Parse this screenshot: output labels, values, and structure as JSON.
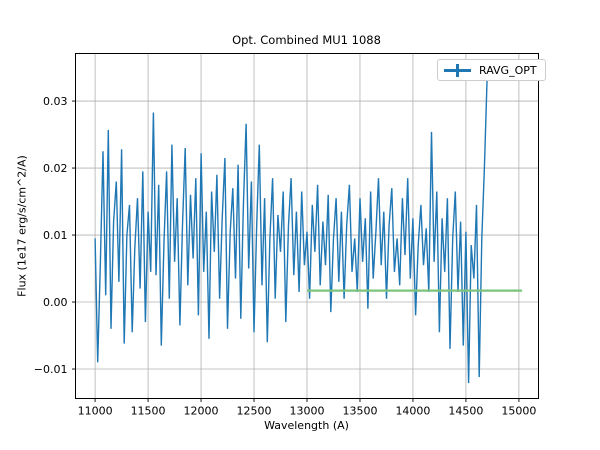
{
  "figure": {
    "title": "Opt. Combined MU1 1088",
    "xlabel": "Wavelength (A)",
    "ylabel": "Flux (1e17 erg/s/cm^2/A)",
    "legend_label": "RAVG_OPT"
  },
  "colors": {
    "spectrum_line": "#1f77b4",
    "average_line": "#7cc47c",
    "grid": "#b0b0b0",
    "spine": "#000000",
    "text": "#000000",
    "legend_border": "#cccccc",
    "background": "#ffffff"
  },
  "chart_data": {
    "type": "line",
    "title": "Opt. Combined MU1 1088",
    "xlabel": "Wavelength (A)",
    "ylabel": "Flux (1e17 erg/s/cm^2/A)",
    "grid": true,
    "legend_position": "upper right",
    "xlim": [
      10815,
      15185
    ],
    "ylim": [
      -0.0144,
      0.0371
    ],
    "x_ticks": [
      11000,
      11500,
      12000,
      12500,
      13000,
      13500,
      14000,
      14500,
      15000
    ],
    "x_tick_labels": [
      "11000",
      "11500",
      "12000",
      "12500",
      "13000",
      "13500",
      "14000",
      "14500",
      "15000"
    ],
    "y_ticks": [
      -0.01,
      0,
      0.01,
      0.02,
      0.03
    ],
    "y_tick_labels": [
      "−0.01",
      "0.00",
      "0.01",
      "0.02",
      "0.03"
    ],
    "series": [
      {
        "name": "RAVG_OPT",
        "color": "#1f77b4",
        "in_legend": true,
        "x_start": 11000,
        "x_step": 25,
        "values": [
          0.0095,
          -0.009,
          0.006,
          0.0225,
          0.001,
          0.0257,
          -0.004,
          0.012,
          0.018,
          0.003,
          0.0228,
          -0.0062,
          0.01,
          0.0145,
          -0.0045,
          0.008,
          0.0155,
          0.002,
          0.0195,
          -0.003,
          0.0135,
          0.0045,
          0.0283,
          0.004,
          0.0175,
          -0.0065,
          0.009,
          0.0195,
          0.0005,
          0.0235,
          0.006,
          0.0155,
          -0.0035,
          0.0115,
          0.023,
          0.0025,
          0.016,
          0.0065,
          0.0185,
          -0.002,
          0.0222,
          0.0045,
          0.0135,
          -0.0055,
          0.0165,
          0.0075,
          0.019,
          0.0005,
          0.0125,
          0.0215,
          -0.004,
          0.0105,
          0.017,
          0.0035,
          0.0205,
          -0.0025,
          0.0145,
          0.0266,
          0.005,
          0.018,
          -0.0045,
          0.0115,
          0.0235,
          0.0025,
          0.0155,
          -0.006,
          0.0095,
          0.0185,
          0.0005,
          0.013,
          0.0075,
          0.0165,
          -0.003,
          0.0115,
          0.0185,
          0.004,
          0.0135,
          0.0015,
          0.0165,
          0.0055,
          0.0105,
          0.0005,
          0.0145,
          0.0075,
          0.0175,
          0.0025,
          0.012,
          0.0055,
          0.016,
          -0.0015,
          0.0095,
          0.0155,
          0.003,
          0.0135,
          0.0005,
          0.0115,
          0.0175,
          0.0045,
          0.0095,
          0.0015,
          0.0155,
          0.006,
          0.0125,
          -0.001,
          0.0165,
          0.0035,
          0.0105,
          0.0185,
          0.0055,
          0.0135,
          0.0005,
          0.0115,
          0.017,
          0.0045,
          0.0095,
          0.0025,
          0.0155,
          0.007,
          0.0185,
          0.0035,
          0.0125,
          -0.002,
          0.0085,
          0.0145,
          0.0055,
          0.011,
          0.0015,
          0.0254,
          0.006,
          0.0165,
          -0.0045,
          0.0125,
          0.0045,
          0.0155,
          -0.007,
          0.0095,
          0.0165,
          0.0015,
          0.012,
          -0.0065,
          0.0105,
          -0.0121,
          0.0085,
          0.0035,
          0.0145,
          -0.0112,
          0.0095,
          0.0205,
          0.0334
        ]
      },
      {
        "name": "average-line",
        "color": "#7cc47c",
        "in_legend": false,
        "x": [
          13000,
          15030
        ],
        "y": [
          0.0017,
          0.0017
        ]
      }
    ]
  }
}
